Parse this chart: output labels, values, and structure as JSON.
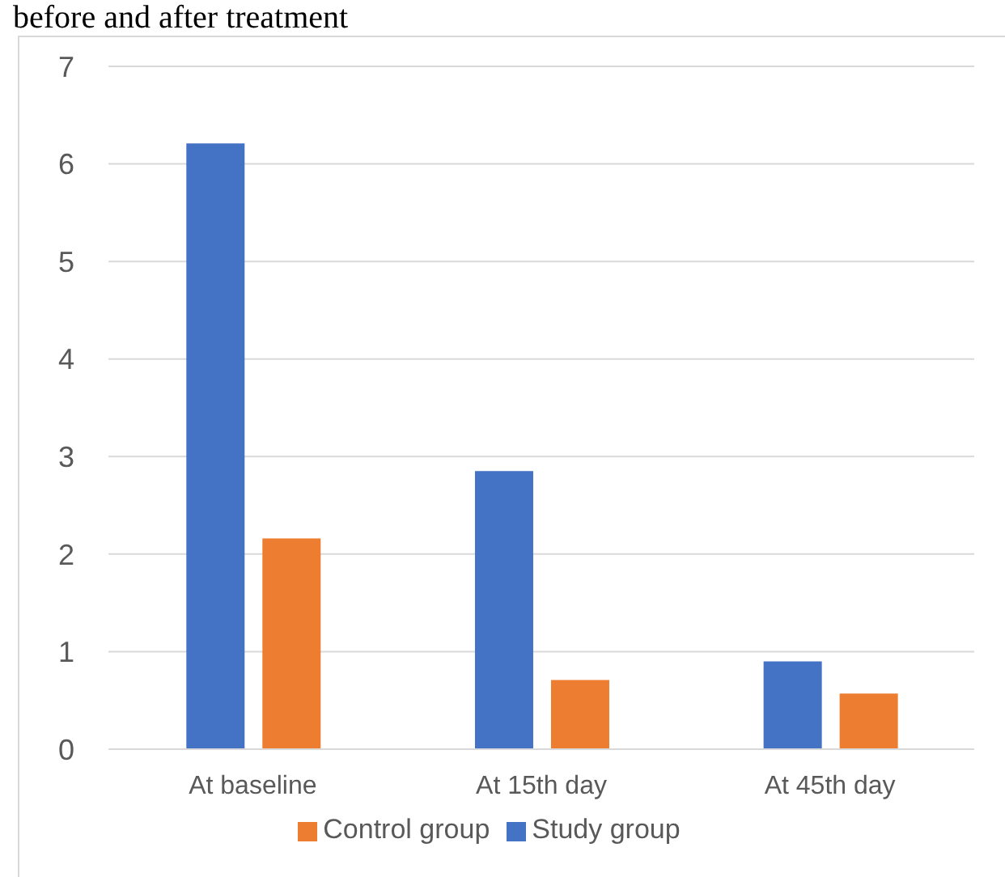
{
  "chart_data": {
    "type": "bar",
    "title": "before and after treatment",
    "categories": [
      "At baseline",
      "At 15th day",
      "At 45th day"
    ],
    "series": [
      {
        "name": "Study group",
        "color": "#4472c4",
        "values": [
          6.21,
          2.85,
          0.9
        ]
      },
      {
        "name": "Control group",
        "color": "#ed7d31",
        "values": [
          2.16,
          0.71,
          0.57
        ]
      }
    ],
    "ylim": [
      0,
      7
    ],
    "yticks": [
      0,
      1,
      2,
      3,
      4,
      5,
      6,
      7
    ],
    "grid": "y",
    "legend": "bottom"
  }
}
